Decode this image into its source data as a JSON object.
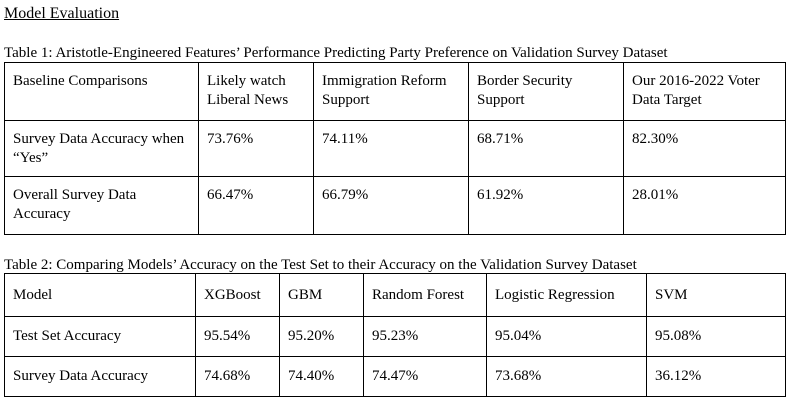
{
  "heading": "Model Evaluation",
  "table1": {
    "caption": "Table 1: Aristotle-Engineered Features’ Performance Predicting Party Preference on Validation Survey Dataset",
    "headers": [
      "Baseline Comparisons",
      "Likely watch Liberal News",
      "Immigration Reform Support",
      "Border Security Support",
      "Our 2016-2022 Voter Data Target"
    ],
    "rows": [
      [
        "Survey Data Accuracy when “Yes”",
        "73.76%",
        "74.11%",
        "68.71%",
        "82.30%"
      ],
      [
        "Overall Survey Data Accuracy",
        "66.47%",
        "66.79%",
        "61.92%",
        "28.01%"
      ]
    ]
  },
  "table2": {
    "caption": "Table 2: Comparing Models’ Accuracy on the Test Set to their Accuracy on the Validation Survey Dataset",
    "headers": [
      "Model",
      "XGBoost",
      "GBM",
      "Random Forest",
      "Logistic Regression",
      "SVM"
    ],
    "rows": [
      [
        "Test Set Accuracy",
        "95.54%",
        "95.20%",
        "95.23%",
        "95.04%",
        "95.08%"
      ],
      [
        "Survey Data Accuracy",
        "74.68%",
        "74.40%",
        "74.47%",
        "73.68%",
        "36.12%"
      ]
    ]
  }
}
